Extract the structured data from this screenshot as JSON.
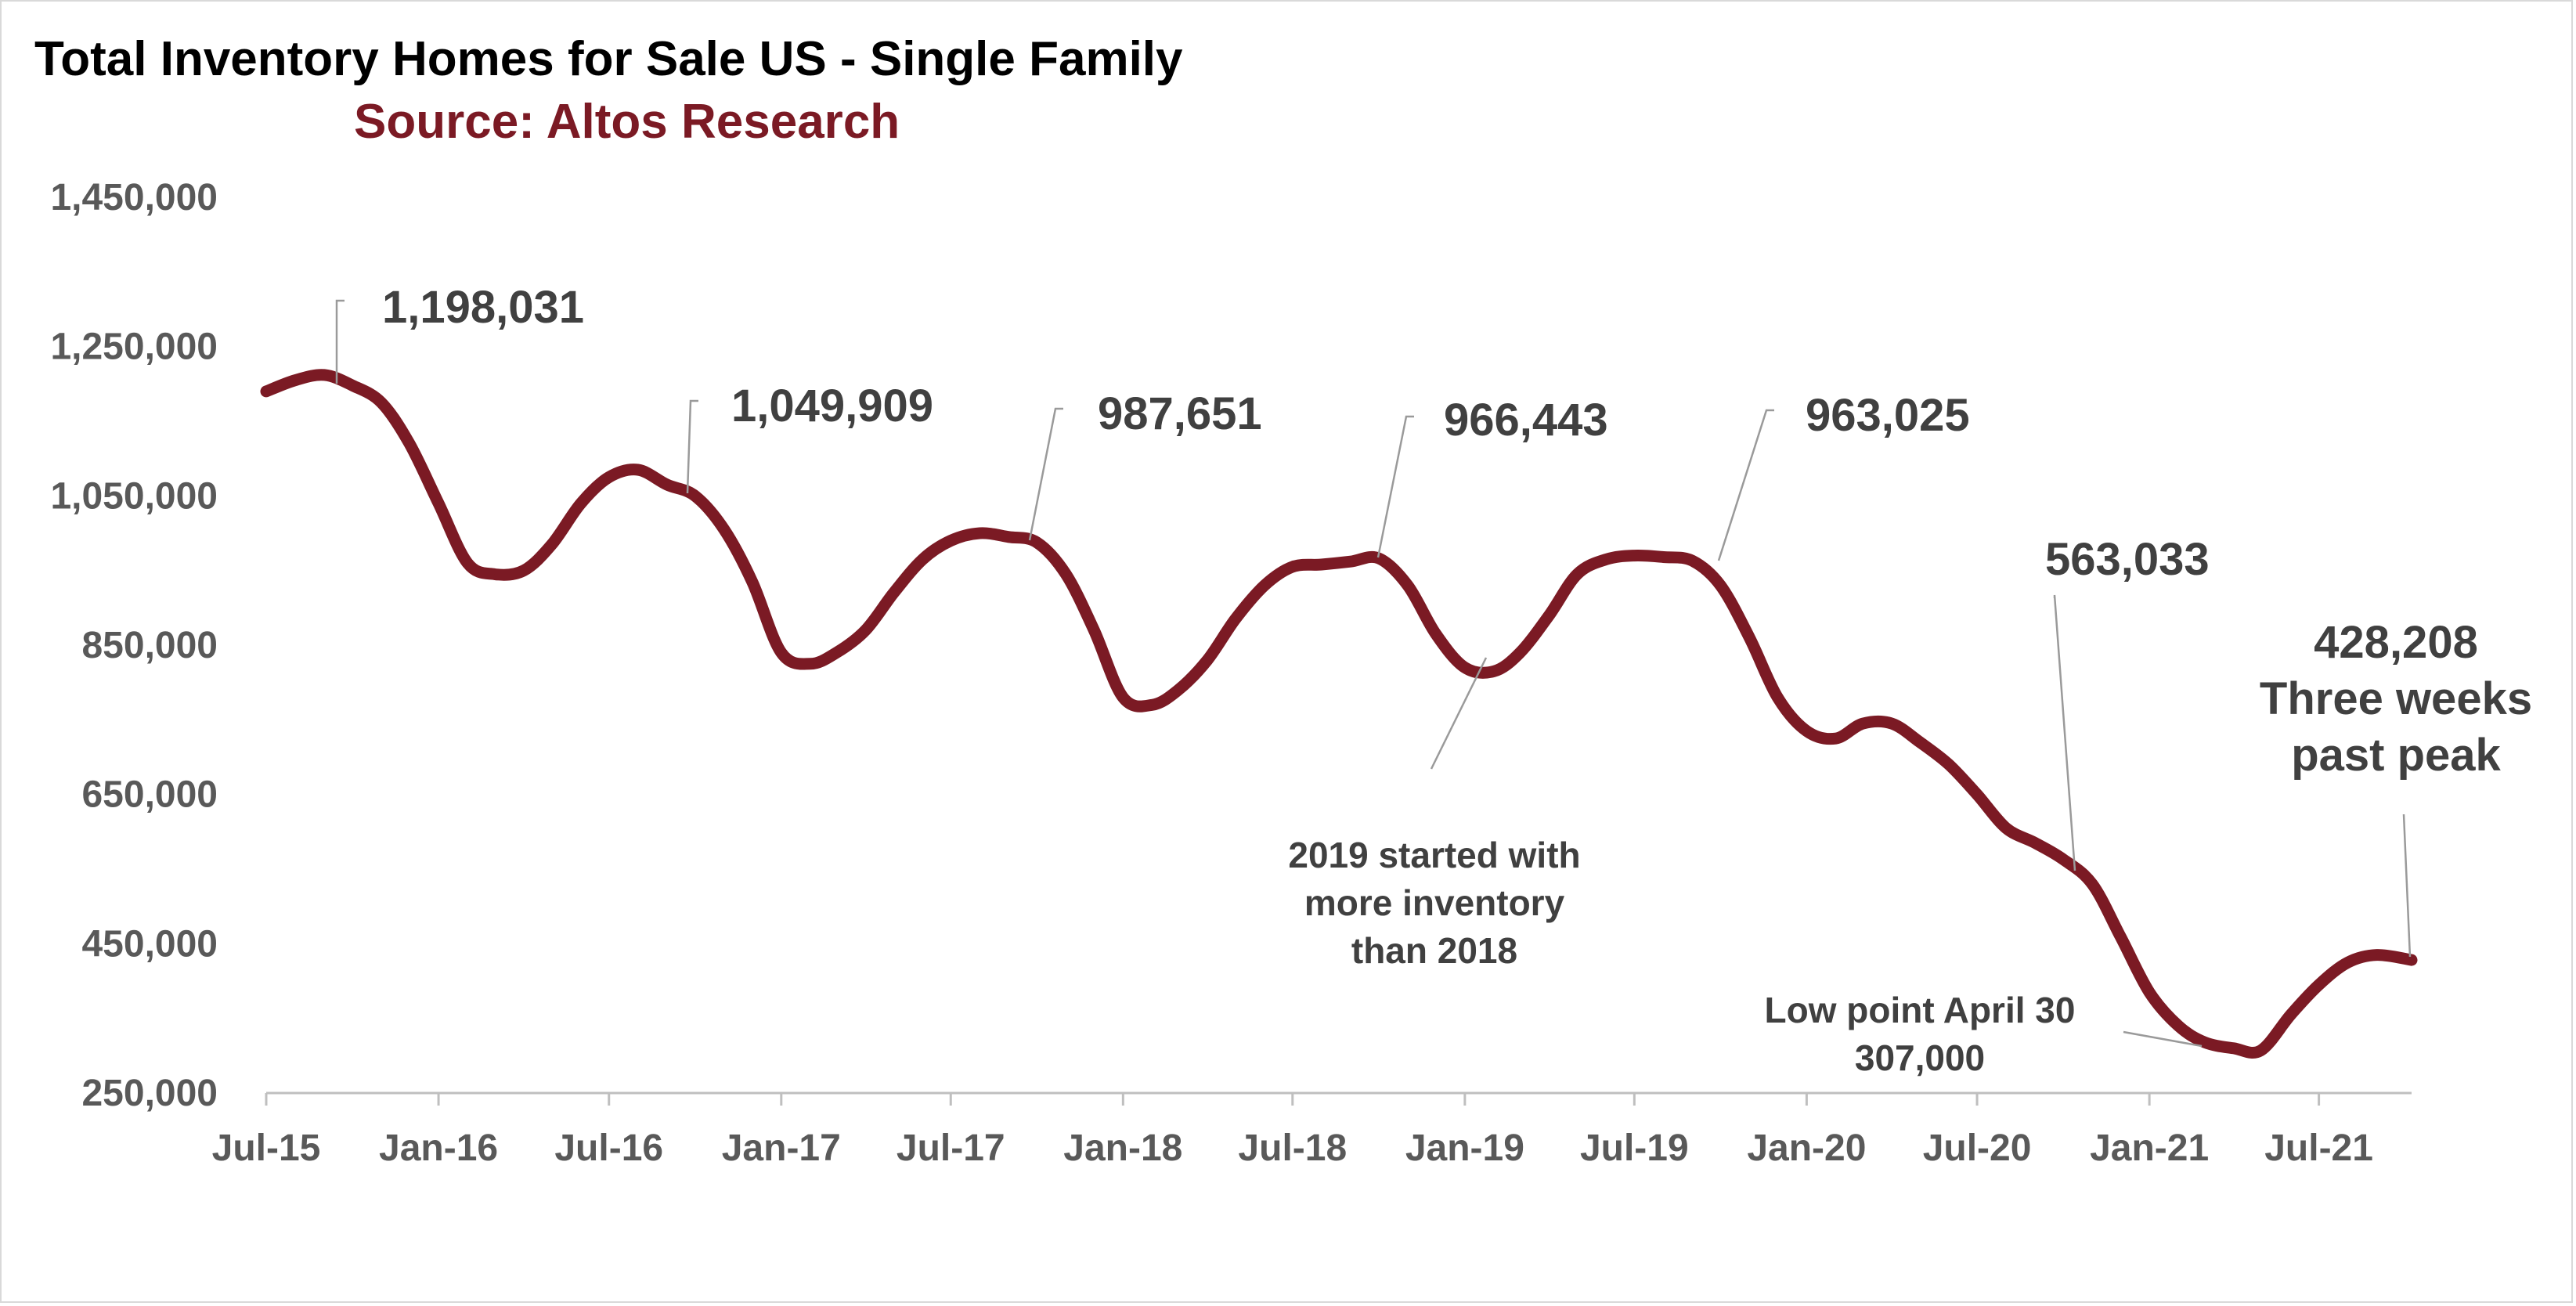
{
  "colors": {
    "series": "#7b1a24",
    "subtitle": "#7b1a24",
    "axis_text": "#595959",
    "annotation_text": "#404040",
    "leader": "#9a9a9a",
    "axis_line": "#bfbfbf"
  },
  "chart_data": {
    "type": "line",
    "title": "Total Inventory Homes for Sale US - Single Family",
    "subtitle": "Source: Altos Research",
    "xlabel": "",
    "ylabel": "",
    "ylim": [
      250000,
      1450000
    ],
    "xlim": [
      "2015-07-01",
      "2021-10-08"
    ],
    "y_ticks": [
      "1,450,000",
      "1,250,000",
      "1,050,000",
      "850,000",
      "650,000",
      "450,000",
      "250,000"
    ],
    "x_ticks": [
      {
        "label": "Jul-15",
        "date": "2015-07-01"
      },
      {
        "label": "Jan-16",
        "date": "2016-01-01"
      },
      {
        "label": "Jul-16",
        "date": "2016-07-01"
      },
      {
        "label": "Jan-17",
        "date": "2017-01-01"
      },
      {
        "label": "Jul-17",
        "date": "2017-07-01"
      },
      {
        "label": "Jan-18",
        "date": "2018-01-01"
      },
      {
        "label": "Jul-18",
        "date": "2018-07-01"
      },
      {
        "label": "Jan-19",
        "date": "2019-01-01"
      },
      {
        "label": "Jul-19",
        "date": "2019-07-01"
      },
      {
        "label": "Jan-20",
        "date": "2020-01-01"
      },
      {
        "label": "Jul-20",
        "date": "2020-07-01"
      },
      {
        "label": "Jan-21",
        "date": "2021-01-01"
      },
      {
        "label": "Jul-21",
        "date": "2021-07-01"
      }
    ],
    "grid": false,
    "legend": "none",
    "series": [
      {
        "values": [
          {
            "x": "2015-07-01",
            "y": 1190000
          },
          {
            "x": "2015-08-01",
            "y": 1205000
          },
          {
            "x": "2015-09-01",
            "y": 1212000
          },
          {
            "x": "2015-10-01",
            "y": 1198031
          },
          {
            "x": "2015-11-01",
            "y": 1175000
          },
          {
            "x": "2015-12-01",
            "y": 1120000
          },
          {
            "x": "2016-01-01",
            "y": 1040000
          },
          {
            "x": "2016-02-01",
            "y": 960000
          },
          {
            "x": "2016-03-01",
            "y": 945000
          },
          {
            "x": "2016-04-01",
            "y": 950000
          },
          {
            "x": "2016-05-01",
            "y": 985000
          },
          {
            "x": "2016-06-01",
            "y": 1040000
          },
          {
            "x": "2016-07-01",
            "y": 1075000
          },
          {
            "x": "2016-08-01",
            "y": 1085000
          },
          {
            "x": "2016-09-01",
            "y": 1065000
          },
          {
            "x": "2016-10-01",
            "y": 1049909
          },
          {
            "x": "2016-11-01",
            "y": 1005000
          },
          {
            "x": "2016-12-01",
            "y": 935000
          },
          {
            "x": "2017-01-01",
            "y": 840000
          },
          {
            "x": "2017-02-01",
            "y": 825000
          },
          {
            "x": "2017-03-01",
            "y": 840000
          },
          {
            "x": "2017-04-01",
            "y": 870000
          },
          {
            "x": "2017-05-01",
            "y": 920000
          },
          {
            "x": "2017-06-01",
            "y": 965000
          },
          {
            "x": "2017-07-01",
            "y": 990000
          },
          {
            "x": "2017-08-01",
            "y": 1000000
          },
          {
            "x": "2017-09-01",
            "y": 995000
          },
          {
            "x": "2017-10-01",
            "y": 987651
          },
          {
            "x": "2017-11-01",
            "y": 945000
          },
          {
            "x": "2017-12-01",
            "y": 870000
          },
          {
            "x": "2018-01-01",
            "y": 780000
          },
          {
            "x": "2018-02-01",
            "y": 770000
          },
          {
            "x": "2018-03-01",
            "y": 790000
          },
          {
            "x": "2018-04-01",
            "y": 830000
          },
          {
            "x": "2018-05-01",
            "y": 885000
          },
          {
            "x": "2018-06-01",
            "y": 930000
          },
          {
            "x": "2018-07-01",
            "y": 955000
          },
          {
            "x": "2018-08-01",
            "y": 958000
          },
          {
            "x": "2018-09-01",
            "y": 962000
          },
          {
            "x": "2018-10-01",
            "y": 966443
          },
          {
            "x": "2018-11-01",
            "y": 930000
          },
          {
            "x": "2018-12-01",
            "y": 865000
          },
          {
            "x": "2019-01-01",
            "y": 820000
          },
          {
            "x": "2019-02-01",
            "y": 815000
          },
          {
            "x": "2019-03-01",
            "y": 840000
          },
          {
            "x": "2019-04-01",
            "y": 890000
          },
          {
            "x": "2019-05-01",
            "y": 945000
          },
          {
            "x": "2019-06-01",
            "y": 965000
          },
          {
            "x": "2019-07-01",
            "y": 970000
          },
          {
            "x": "2019-08-01",
            "y": 968000
          },
          {
            "x": "2019-09-01",
            "y": 963025
          },
          {
            "x": "2019-10-01",
            "y": 930000
          },
          {
            "x": "2019-11-01",
            "y": 860000
          },
          {
            "x": "2019-12-01",
            "y": 780000
          },
          {
            "x": "2020-01-01",
            "y": 735000
          },
          {
            "x": "2020-02-01",
            "y": 725000
          },
          {
            "x": "2020-03-01",
            "y": 745000
          },
          {
            "x": "2020-04-01",
            "y": 745000
          },
          {
            "x": "2020-05-01",
            "y": 720000
          },
          {
            "x": "2020-06-01",
            "y": 690000
          },
          {
            "x": "2020-07-01",
            "y": 650000
          },
          {
            "x": "2020-08-01",
            "y": 605000
          },
          {
            "x": "2020-09-01",
            "y": 585000
          },
          {
            "x": "2020-10-01",
            "y": 563033
          },
          {
            "x": "2020-11-01",
            "y": 530000
          },
          {
            "x": "2020-12-01",
            "y": 460000
          },
          {
            "x": "2021-01-01",
            "y": 385000
          },
          {
            "x": "2021-02-01",
            "y": 340000
          },
          {
            "x": "2021-03-01",
            "y": 318000
          },
          {
            "x": "2021-04-01",
            "y": 310000
          },
          {
            "x": "2021-04-30",
            "y": 307000
          },
          {
            "x": "2021-06-01",
            "y": 355000
          },
          {
            "x": "2021-07-01",
            "y": 395000
          },
          {
            "x": "2021-08-01",
            "y": 425000
          },
          {
            "x": "2021-09-01",
            "y": 435000
          },
          {
            "x": "2021-10-08",
            "y": 428208
          }
        ]
      }
    ],
    "annotations": [
      {
        "lines": [
          "1,198,031"
        ],
        "size": "large",
        "point": "2015-10-01"
      },
      {
        "lines": [
          "1,049,909"
        ],
        "size": "large",
        "point": "2016-10-01"
      },
      {
        "lines": [
          "987,651"
        ],
        "size": "large",
        "point": "2017-10-01"
      },
      {
        "lines": [
          "966,443"
        ],
        "size": "large",
        "point": "2018-10-01"
      },
      {
        "lines": [
          "963,025"
        ],
        "size": "large",
        "point": "2019-09-01"
      },
      {
        "lines": [
          "563,033"
        ],
        "size": "large",
        "point": "2020-10-01"
      },
      {
        "lines": [
          "428,208",
          "Three weeks",
          "past peak"
        ],
        "size": "large",
        "point": "2021-10-08"
      },
      {
        "lines": [
          "2019 started with",
          "more inventory",
          "than 2018"
        ],
        "size": "small",
        "point": "2019-01-01"
      },
      {
        "lines": [
          "Low point April 30",
          "307,000"
        ],
        "size": "small",
        "point": "2021-04-30"
      }
    ]
  }
}
